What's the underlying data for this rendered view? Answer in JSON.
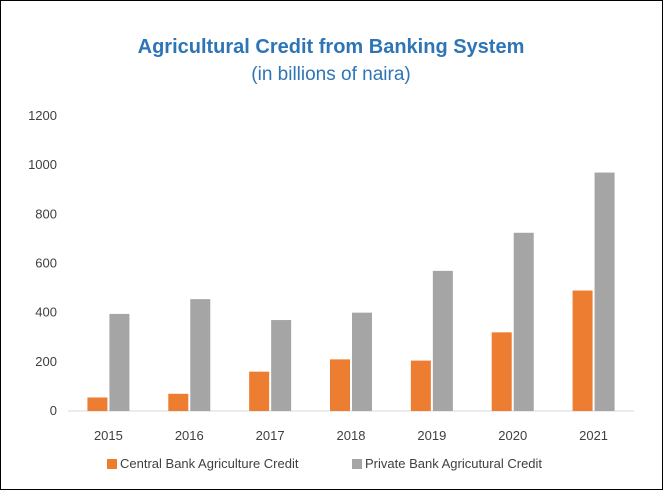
{
  "chart_data": {
    "type": "bar",
    "title": "Agricultural Credit from Banking System",
    "subtitle": "(in billions of naira)",
    "xlabel": "",
    "ylabel": "",
    "categories": [
      "2015",
      "2016",
      "2017",
      "2018",
      "2019",
      "2020",
      "2021"
    ],
    "series": [
      {
        "name": "Central Bank Agriculture Credit",
        "color": "#ED7D31",
        "values": [
          55,
          70,
          160,
          210,
          205,
          320,
          490
        ]
      },
      {
        "name": "Private Bank Agricutural Credit",
        "color": "#A5A5A5",
        "values": [
          395,
          455,
          370,
          400,
          570,
          725,
          970
        ]
      }
    ],
    "ylim": [
      0,
      1200
    ],
    "yticks": [
      0,
      200,
      400,
      600,
      800,
      1000,
      1200
    ],
    "grid": false,
    "legend_position": "bottom",
    "title_color": "#2E75B6",
    "subtitle_color": "#2E75B6"
  }
}
